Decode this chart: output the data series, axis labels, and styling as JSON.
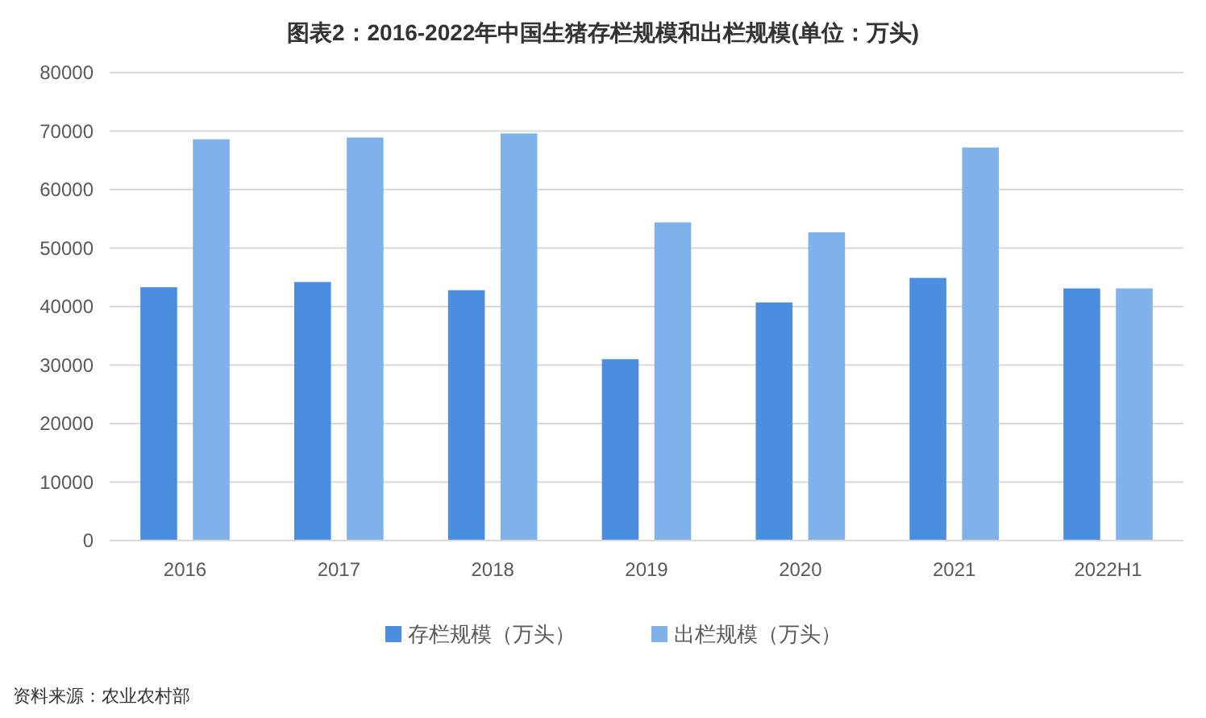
{
  "chart_data": {
    "type": "bar",
    "title": "图表2：2016-2022年中国生猪存栏规模和出栏规模(单位：万头)",
    "categories": [
      "2016",
      "2017",
      "2018",
      "2019",
      "2020",
      "2021",
      "2022H1"
    ],
    "series": [
      {
        "name": "存栏规模（万头）",
        "color": "#4a8ee0",
        "values": [
          43300,
          44200,
          42800,
          31000,
          40700,
          44900,
          43100
        ]
      },
      {
        "name": "出栏规模（万头）",
        "color": "#7fb2ea",
        "values": [
          68600,
          68900,
          69600,
          54400,
          52700,
          67200,
          43100
        ]
      }
    ],
    "ylim": [
      0,
      80000
    ],
    "yticks": [
      0,
      10000,
      20000,
      30000,
      40000,
      50000,
      60000,
      70000,
      80000
    ],
    "grid": "y",
    "legend": "bottom",
    "annotations": [
      "资料来源：农业农村部"
    ]
  }
}
